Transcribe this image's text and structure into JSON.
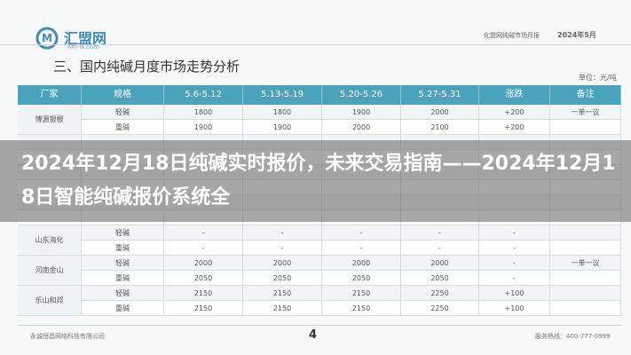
{
  "header": {
    "logo_text": "汇盟网",
    "logo_sub": "hm-w.com",
    "report_title": "化盟网纯碱市场月报",
    "report_date": "2024年5月"
  },
  "section_title": "三、国内纯碱月度市场走势分析",
  "unit": "单位：元/吨",
  "table": {
    "columns": [
      "厂家",
      "规格",
      "5.6-5.12",
      "5.13-5.19",
      "5.20-5.26",
      "5.27-5.31",
      "涨跌",
      "备注"
    ],
    "top_groups": [
      {
        "company": "博源银根",
        "rows": [
          [
            "轻碱",
            "1800",
            "1800",
            "1900",
            "2000",
            "+200",
            "一单一议"
          ],
          [
            "重碱",
            "1900",
            "1900",
            "2000",
            "2100",
            "+200"
          ]
        ]
      }
    ],
    "bottom_groups": [
      {
        "company": "山东海化",
        "rows": [
          [
            "轻碱",
            "-",
            "-",
            "-",
            "-",
            "-"
          ],
          [
            "重碱",
            "-",
            "-",
            "-",
            "-",
            "-"
          ]
        ]
      },
      {
        "company": "河南金山",
        "rows": [
          [
            "轻碱",
            "2000",
            "2000",
            "2000",
            "2000",
            "-",
            "一单一议"
          ],
          [
            "重碱",
            "2050",
            "2050",
            "2050",
            "2050",
            "-"
          ]
        ]
      },
      {
        "company": "乐山和邦",
        "rows": [
          [
            "轻碱",
            "2150",
            "2150",
            "2150",
            "2250",
            "+100"
          ],
          [
            "重碱",
            "2150",
            "2150",
            "2150",
            "2250",
            "+100"
          ]
        ]
      }
    ]
  },
  "footer": {
    "company": "永诚恒昌网络科技有限公司",
    "page": "4",
    "hotline": "服务热线：400-777-0999"
  },
  "overlay_title": "2024年12月18日纯碱实时报价，未来交易指南——2024年12月18日智能纯碱报价系统全"
}
